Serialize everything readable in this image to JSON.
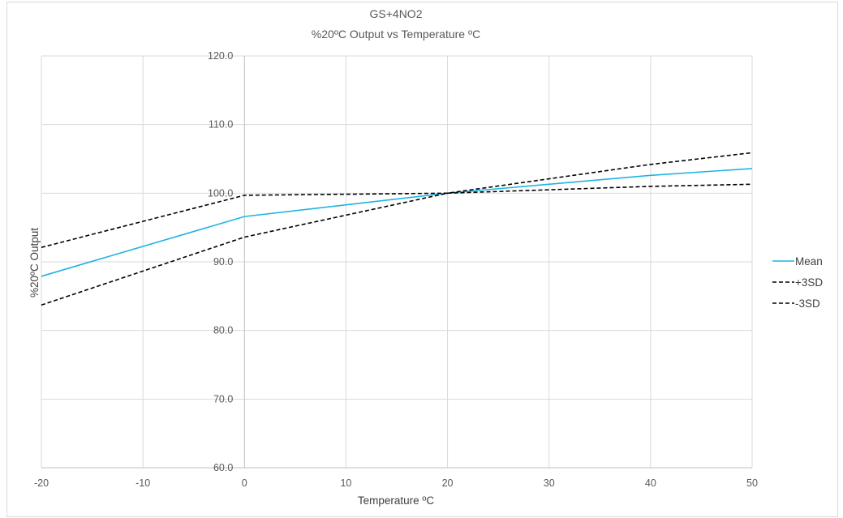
{
  "chart_data": {
    "type": "line",
    "title": "GS+4NO2",
    "subtitle": "%20ºC Output vs Temperature ºC",
    "xlabel": "Temperature ºC",
    "ylabel": "%20ºC Output",
    "xlim": [
      -20,
      50
    ],
    "ylim": [
      60,
      120
    ],
    "x_ticks": [
      "-20",
      "-10",
      "0",
      "10",
      "20",
      "30",
      "40",
      "50"
    ],
    "y_ticks": [
      "60.0",
      "70.0",
      "80.0",
      "90.0",
      "100.0",
      "110.0",
      "120.0"
    ],
    "x": [
      -20,
      0,
      20,
      40,
      50
    ],
    "grid": true,
    "legend_position": "right",
    "series": [
      {
        "name": "Mean",
        "color": "#1fb4e2",
        "dash": "solid",
        "values": [
          87.9,
          96.6,
          100.0,
          102.6,
          103.6
        ]
      },
      {
        "name": "+3SD",
        "color": "#000000",
        "dash": "dashed",
        "values": [
          92.1,
          99.7,
          100.0,
          104.2,
          105.9
        ]
      },
      {
        "name": "-3SD",
        "color": "#000000",
        "dash": "dashed",
        "values": [
          83.7,
          93.6,
          100.0,
          101.0,
          101.3
        ]
      }
    ]
  }
}
